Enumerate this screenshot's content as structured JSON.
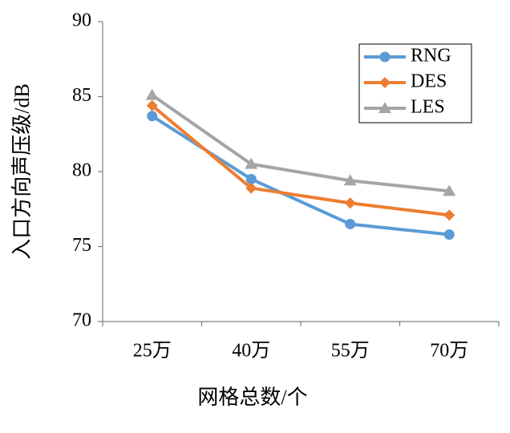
{
  "chart_data": {
    "type": "line",
    "y_label": "入口方向声压级/dB",
    "x_label": "网格总数/个",
    "categories": [
      "25万",
      "40万",
      "55万",
      "70万"
    ],
    "series": [
      {
        "name": "RNG",
        "color": "#5b9bd5",
        "marker": "circle",
        "values": [
          83.7,
          79.5,
          76.5,
          75.8
        ]
      },
      {
        "name": "DES",
        "color": "#ed7d31",
        "marker": "diamond",
        "values": [
          84.4,
          78.9,
          77.9,
          77.1
        ]
      },
      {
        "name": "LES",
        "color": "#a5a5a5",
        "marker": "triangle",
        "values": [
          85.1,
          80.5,
          79.4,
          78.7
        ]
      }
    ],
    "ylim": [
      70,
      90
    ],
    "yticks": [
      70,
      75,
      80,
      85,
      90
    ],
    "grid": false,
    "legend": "upper right"
  }
}
